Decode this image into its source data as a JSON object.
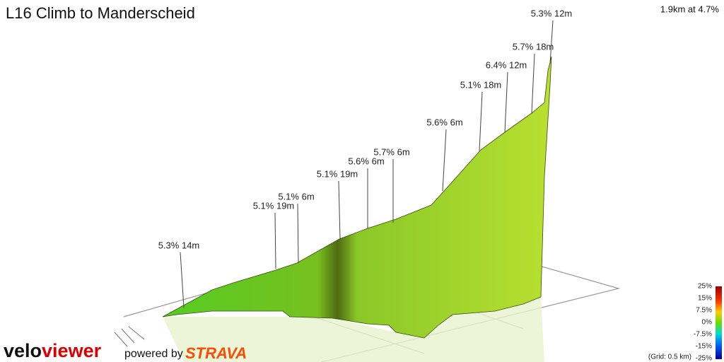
{
  "header": {
    "title": "L16 Climb to Manderscheid",
    "summary": "1.9km at 4.7%"
  },
  "annotations": [
    "5.3% 14m",
    "5.1% 19m",
    "5.1% 6m",
    "5.1% 19m",
    "5.6% 6m",
    "5.7% 6m",
    "5.6% 6m",
    "5.1% 18m",
    "6.4% 12m",
    "5.7% 18m",
    "5.3% 12m"
  ],
  "scale": {
    "labels": [
      "25%",
      "15%",
      "7.5%",
      "0%",
      "-7.5%",
      "-15%",
      "-25%"
    ],
    "grid_note": "(Grid: 0.5 km)"
  },
  "footer": {
    "brand_a": "velo",
    "brand_b": "viewer",
    "powered": "powered by",
    "strava": "STRAVA"
  }
}
